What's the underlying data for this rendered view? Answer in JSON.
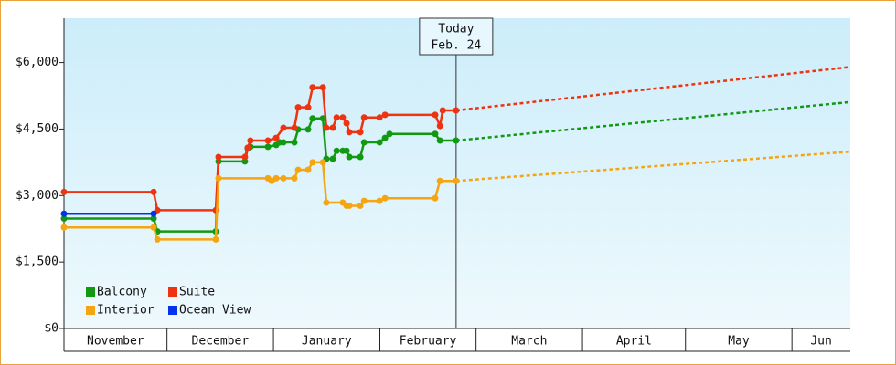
{
  "chart_data": {
    "type": "line",
    "xlim": [
      0,
      229
    ],
    "ylim": [
      0,
      7000
    ],
    "xticks": [
      {
        "value": 0,
        "label": "November"
      },
      {
        "value": 30,
        "label": "December"
      },
      {
        "value": 61,
        "label": "January"
      },
      {
        "value": 92,
        "label": "February"
      },
      {
        "value": 120,
        "label": "March"
      },
      {
        "value": 151,
        "label": "April"
      },
      {
        "value": 181,
        "label": "May"
      },
      {
        "value": 212,
        "label": "Jun"
      }
    ],
    "yticks": [
      {
        "value": 0,
        "label": "$0"
      },
      {
        "value": 1500,
        "label": "$1,500"
      },
      {
        "value": 3000,
        "label": "$3,000"
      },
      {
        "value": 4500,
        "label": "$4,500"
      },
      {
        "value": 6000,
        "label": "$6,000"
      }
    ],
    "legend": "lower left",
    "annotation": {
      "x": 114.2,
      "lines": [
        "Today",
        "Feb. 24"
      ]
    },
    "series": [
      {
        "name": "Balcony",
        "color": "#119911",
        "x": [
          0,
          26.1,
          27.2,
          44.2,
          45,
          52.7,
          53.5,
          54.3,
          59.4,
          61.8,
          62.8,
          63.9,
          67.1,
          68.2,
          71.1,
          72.4,
          75.4,
          76.4,
          78.3,
          79.4,
          81.2,
          82.3,
          83.1,
          86.3,
          87.4,
          91.9,
          93.5,
          94.8,
          108.1,
          109.5,
          114.2
        ],
        "values": [
          2480,
          2480,
          2190,
          2190,
          3770,
          3770,
          4060,
          4100,
          4100,
          4140,
          4200,
          4200,
          4200,
          4490,
          4490,
          4740,
          4740,
          3830,
          3830,
          4010,
          4010,
          4010,
          3870,
          3870,
          4200,
          4200,
          4300,
          4390,
          4390,
          4240,
          4240
        ],
        "projection": {
          "x": [
            114.2,
            229
          ],
          "values": [
            4240,
            5110
          ]
        }
      },
      {
        "name": "Suite",
        "color": "#ee3311",
        "x": [
          0,
          26.1,
          27.2,
          44.2,
          45,
          52.7,
          53.5,
          54.3,
          59.4,
          61.8,
          63.9,
          67.1,
          68.2,
          71.1,
          72.4,
          75.4,
          76.4,
          78.3,
          79.4,
          81.2,
          82.3,
          83.1,
          86.3,
          87.4,
          91.9,
          93.5,
          108.1,
          109.5,
          110.3,
          114.2
        ],
        "values": [
          3080,
          3080,
          2670,
          2670,
          3870,
          3870,
          4080,
          4240,
          4240,
          4300,
          4530,
          4530,
          4990,
          4990,
          5440,
          5440,
          4530,
          4530,
          4760,
          4760,
          4630,
          4430,
          4430,
          4760,
          4760,
          4820,
          4820,
          4570,
          4920,
          4920
        ],
        "projection": {
          "x": [
            114.2,
            229
          ],
          "values": [
            4920,
            5900
          ]
        }
      },
      {
        "name": "Interior",
        "color": "#f5a511",
        "x": [
          0,
          26.1,
          27.2,
          44.2,
          45,
          59.4,
          60.5,
          61.8,
          63.9,
          67.1,
          68.2,
          71.1,
          72.4,
          75.4,
          76.4,
          81.2,
          82.3,
          83.1,
          86.3,
          87.4,
          91.9,
          93.5,
          108.1,
          109.5,
          114.2
        ],
        "values": [
          2280,
          2280,
          2010,
          2010,
          3390,
          3390,
          3330,
          3390,
          3390,
          3390,
          3580,
          3580,
          3750,
          3750,
          2840,
          2840,
          2770,
          2770,
          2770,
          2880,
          2880,
          2940,
          2940,
          3330,
          3330
        ],
        "projection": {
          "x": [
            114.2,
            229
          ],
          "values": [
            3330,
            3990
          ]
        }
      },
      {
        "name": "Ocean View",
        "color": "#0033ee",
        "x": [
          0,
          26.1
        ],
        "values": [
          2590,
          2590
        ]
      }
    ]
  }
}
